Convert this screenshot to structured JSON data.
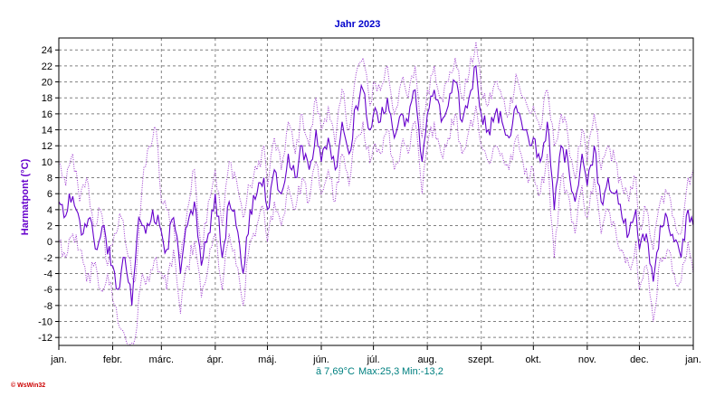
{
  "chart_data": {
    "type": "line",
    "title": "Jahr 2023",
    "ylabel": "Harmatpont  (°C)",
    "xlabel": "",
    "ylim": [
      -13,
      25.5
    ],
    "yticks": [
      24,
      22,
      20,
      18,
      16,
      14,
      12,
      10,
      8,
      6,
      4,
      2,
      0,
      -2,
      -4,
      -6,
      -8,
      -10,
      -12
    ],
    "x_axis_unit": "day of year",
    "xlim": [
      1,
      366
    ],
    "month_labels": [
      "jan.",
      "febr.",
      "márc.",
      "ápr.",
      "máj.",
      "jún.",
      "júl.",
      "aug.",
      "szept.",
      "okt.",
      "nov.",
      "dec.",
      "jan."
    ],
    "month_start_days": [
      1,
      32,
      60,
      91,
      121,
      152,
      182,
      213,
      244,
      274,
      305,
      335,
      366
    ],
    "grid": true,
    "colors": {
      "mean": "#6600cc",
      "minmax": "#9933cc",
      "title": "#0000cc",
      "stats": "#008080",
      "grid": "#808080"
    },
    "series": [
      {
        "key": "max",
        "style": "dotted",
        "anchors": [
          [
            1,
            10
          ],
          [
            5,
            7
          ],
          [
            9,
            11
          ],
          [
            13,
            5
          ],
          [
            17,
            8
          ],
          [
            21,
            2
          ],
          [
            25,
            4
          ],
          [
            29,
            -3
          ],
          [
            33,
            1
          ],
          [
            37,
            3
          ],
          [
            41,
            -2
          ],
          [
            45,
            -5
          ],
          [
            49,
            7
          ],
          [
            53,
            12
          ],
          [
            57,
            14
          ],
          [
            60,
            5
          ],
          [
            63,
            4
          ],
          [
            67,
            2
          ],
          [
            71,
            -2
          ],
          [
            75,
            4
          ],
          [
            79,
            9
          ],
          [
            83,
            -1
          ],
          [
            87,
            5
          ],
          [
            91,
            9
          ],
          [
            95,
            2
          ],
          [
            99,
            10
          ],
          [
            103,
            8
          ],
          [
            107,
            3
          ],
          [
            111,
            7
          ],
          [
            115,
            9
          ],
          [
            119,
            12
          ],
          [
            121,
            7
          ],
          [
            125,
            13
          ],
          [
            129,
            9
          ],
          [
            133,
            15
          ],
          [
            137,
            11
          ],
          [
            141,
            16
          ],
          [
            145,
            12
          ],
          [
            149,
            18
          ],
          [
            152,
            14
          ],
          [
            156,
            17
          ],
          [
            160,
            12
          ],
          [
            164,
            19
          ],
          [
            168,
            14
          ],
          [
            172,
            21
          ],
          [
            176,
            23
          ],
          [
            180,
            17
          ],
          [
            182,
            20
          ],
          [
            186,
            19
          ],
          [
            190,
            22
          ],
          [
            194,
            16
          ],
          [
            198,
            20
          ],
          [
            202,
            18
          ],
          [
            206,
            22
          ],
          [
            210,
            13
          ],
          [
            213,
            19
          ],
          [
            217,
            22
          ],
          [
            221,
            18
          ],
          [
            225,
            20
          ],
          [
            229,
            23
          ],
          [
            233,
            18
          ],
          [
            237,
            21
          ],
          [
            241,
            25
          ],
          [
            244,
            19
          ],
          [
            248,
            17
          ],
          [
            252,
            20
          ],
          [
            256,
            18
          ],
          [
            260,
            16
          ],
          [
            264,
            21
          ],
          [
            268,
            18
          ],
          [
            272,
            16
          ],
          [
            274,
            17
          ],
          [
            278,
            14
          ],
          [
            282,
            19
          ],
          [
            286,
            12
          ],
          [
            290,
            16
          ],
          [
            294,
            13
          ],
          [
            298,
            8
          ],
          [
            302,
            14
          ],
          [
            305,
            10
          ],
          [
            309,
            16
          ],
          [
            313,
            9
          ],
          [
            317,
            12
          ],
          [
            321,
            10
          ],
          [
            325,
            7
          ],
          [
            329,
            5
          ],
          [
            333,
            8
          ],
          [
            335,
            2
          ],
          [
            339,
            4
          ],
          [
            343,
            -1
          ],
          [
            347,
            5
          ],
          [
            351,
            6
          ],
          [
            355,
            3
          ],
          [
            359,
            1
          ],
          [
            363,
            8
          ],
          [
            366,
            9
          ]
        ]
      },
      {
        "key": "mean",
        "style": "solid",
        "anchors": [
          [
            1,
            5
          ],
          [
            4,
            3
          ],
          [
            7,
            6
          ],
          [
            11,
            4
          ],
          [
            15,
            1
          ],
          [
            19,
            3
          ],
          [
            23,
            -1
          ],
          [
            27,
            2
          ],
          [
            31,
            -3
          ],
          [
            35,
            -6
          ],
          [
            39,
            -2
          ],
          [
            43,
            -8
          ],
          [
            47,
            3
          ],
          [
            51,
            1
          ],
          [
            55,
            4
          ],
          [
            59,
            2
          ],
          [
            63,
            -1
          ],
          [
            67,
            3
          ],
          [
            71,
            -4
          ],
          [
            75,
            2
          ],
          [
            79,
            5
          ],
          [
            83,
            -3
          ],
          [
            87,
            1
          ],
          [
            91,
            6
          ],
          [
            95,
            -2
          ],
          [
            99,
            5
          ],
          [
            103,
            2
          ],
          [
            107,
            -4
          ],
          [
            111,
            4
          ],
          [
            115,
            6
          ],
          [
            119,
            8
          ],
          [
            121,
            4
          ],
          [
            125,
            9
          ],
          [
            129,
            6
          ],
          [
            133,
            11
          ],
          [
            137,
            8
          ],
          [
            141,
            12
          ],
          [
            145,
            9
          ],
          [
            149,
            14
          ],
          [
            152,
            10
          ],
          [
            156,
            13
          ],
          [
            160,
            9
          ],
          [
            164,
            15
          ],
          [
            168,
            11
          ],
          [
            172,
            17
          ],
          [
            176,
            19
          ],
          [
            180,
            14
          ],
          [
            182,
            16
          ],
          [
            186,
            15
          ],
          [
            190,
            18
          ],
          [
            194,
            13
          ],
          [
            198,
            16
          ],
          [
            202,
            15
          ],
          [
            206,
            19
          ],
          [
            210,
            10
          ],
          [
            213,
            16
          ],
          [
            217,
            19
          ],
          [
            221,
            15
          ],
          [
            225,
            17
          ],
          [
            229,
            20
          ],
          [
            233,
            15
          ],
          [
            237,
            18
          ],
          [
            241,
            22
          ],
          [
            244,
            16
          ],
          [
            248,
            14
          ],
          [
            252,
            16
          ],
          [
            256,
            15
          ],
          [
            260,
            13
          ],
          [
            264,
            17
          ],
          [
            268,
            14
          ],
          [
            272,
            12
          ],
          [
            274,
            13
          ],
          [
            278,
            10
          ],
          [
            282,
            15
          ],
          [
            286,
            4
          ],
          [
            290,
            12
          ],
          [
            294,
            10
          ],
          [
            298,
            5
          ],
          [
            302,
            11
          ],
          [
            305,
            7
          ],
          [
            309,
            12
          ],
          [
            313,
            5
          ],
          [
            317,
            8
          ],
          [
            321,
            6
          ],
          [
            325,
            3
          ],
          [
            329,
            1
          ],
          [
            333,
            4
          ],
          [
            335,
            -1
          ],
          [
            339,
            1
          ],
          [
            343,
            -5
          ],
          [
            347,
            2
          ],
          [
            351,
            3
          ],
          [
            355,
            0
          ],
          [
            359,
            -2
          ],
          [
            363,
            4
          ],
          [
            366,
            2
          ]
        ]
      },
      {
        "key": "min",
        "style": "dotted",
        "anchors": [
          [
            1,
            0
          ],
          [
            5,
            -2
          ],
          [
            9,
            1
          ],
          [
            13,
            -1
          ],
          [
            17,
            -5
          ],
          [
            21,
            -3
          ],
          [
            25,
            -6
          ],
          [
            29,
            -4
          ],
          [
            33,
            -8
          ],
          [
            37,
            -11
          ],
          [
            41,
            -13
          ],
          [
            45,
            -12
          ],
          [
            49,
            -4
          ],
          [
            53,
            -5
          ],
          [
            57,
            -2
          ],
          [
            60,
            -4
          ],
          [
            63,
            -6
          ],
          [
            67,
            -1
          ],
          [
            71,
            -9
          ],
          [
            75,
            -3
          ],
          [
            79,
            0
          ],
          [
            83,
            -7
          ],
          [
            87,
            -3
          ],
          [
            91,
            1
          ],
          [
            95,
            -6
          ],
          [
            99,
            1
          ],
          [
            103,
            -3
          ],
          [
            107,
            -8
          ],
          [
            111,
            0
          ],
          [
            115,
            2
          ],
          [
            119,
            4
          ],
          [
            121,
            0
          ],
          [
            125,
            5
          ],
          [
            129,
            2
          ],
          [
            133,
            7
          ],
          [
            137,
            4
          ],
          [
            141,
            8
          ],
          [
            145,
            5
          ],
          [
            149,
            10
          ],
          [
            152,
            6
          ],
          [
            156,
            9
          ],
          [
            160,
            5
          ],
          [
            164,
            11
          ],
          [
            168,
            7
          ],
          [
            172,
            13
          ],
          [
            176,
            15
          ],
          [
            180,
            10
          ],
          [
            182,
            12
          ],
          [
            186,
            11
          ],
          [
            190,
            14
          ],
          [
            194,
            9
          ],
          [
            198,
            12
          ],
          [
            202,
            11
          ],
          [
            206,
            15
          ],
          [
            210,
            6
          ],
          [
            213,
            12
          ],
          [
            217,
            15
          ],
          [
            221,
            11
          ],
          [
            225,
            13
          ],
          [
            229,
            16
          ],
          [
            233,
            11
          ],
          [
            237,
            14
          ],
          [
            241,
            17
          ],
          [
            244,
            12
          ],
          [
            248,
            10
          ],
          [
            252,
            12
          ],
          [
            256,
            11
          ],
          [
            260,
            9
          ],
          [
            264,
            13
          ],
          [
            268,
            10
          ],
          [
            272,
            8
          ],
          [
            274,
            9
          ],
          [
            278,
            6
          ],
          [
            282,
            11
          ],
          [
            286,
            -2
          ],
          [
            290,
            8
          ],
          [
            294,
            6
          ],
          [
            298,
            1
          ],
          [
            302,
            7
          ],
          [
            305,
            3
          ],
          [
            309,
            8
          ],
          [
            313,
            1
          ],
          [
            317,
            4
          ],
          [
            321,
            2
          ],
          [
            325,
            -1
          ],
          [
            329,
            -3
          ],
          [
            333,
            0
          ],
          [
            335,
            -6
          ],
          [
            339,
            -3
          ],
          [
            343,
            -10
          ],
          [
            347,
            -2
          ],
          [
            351,
            -1
          ],
          [
            355,
            -4
          ],
          [
            359,
            -5
          ],
          [
            363,
            0
          ],
          [
            366,
            -4
          ]
        ]
      }
    ],
    "stats": {
      "mean_label": "ā 7,69°C",
      "max_label": "Max:25,3",
      "min_label": "Min:-13,2"
    },
    "credit": "© WsWin32"
  }
}
